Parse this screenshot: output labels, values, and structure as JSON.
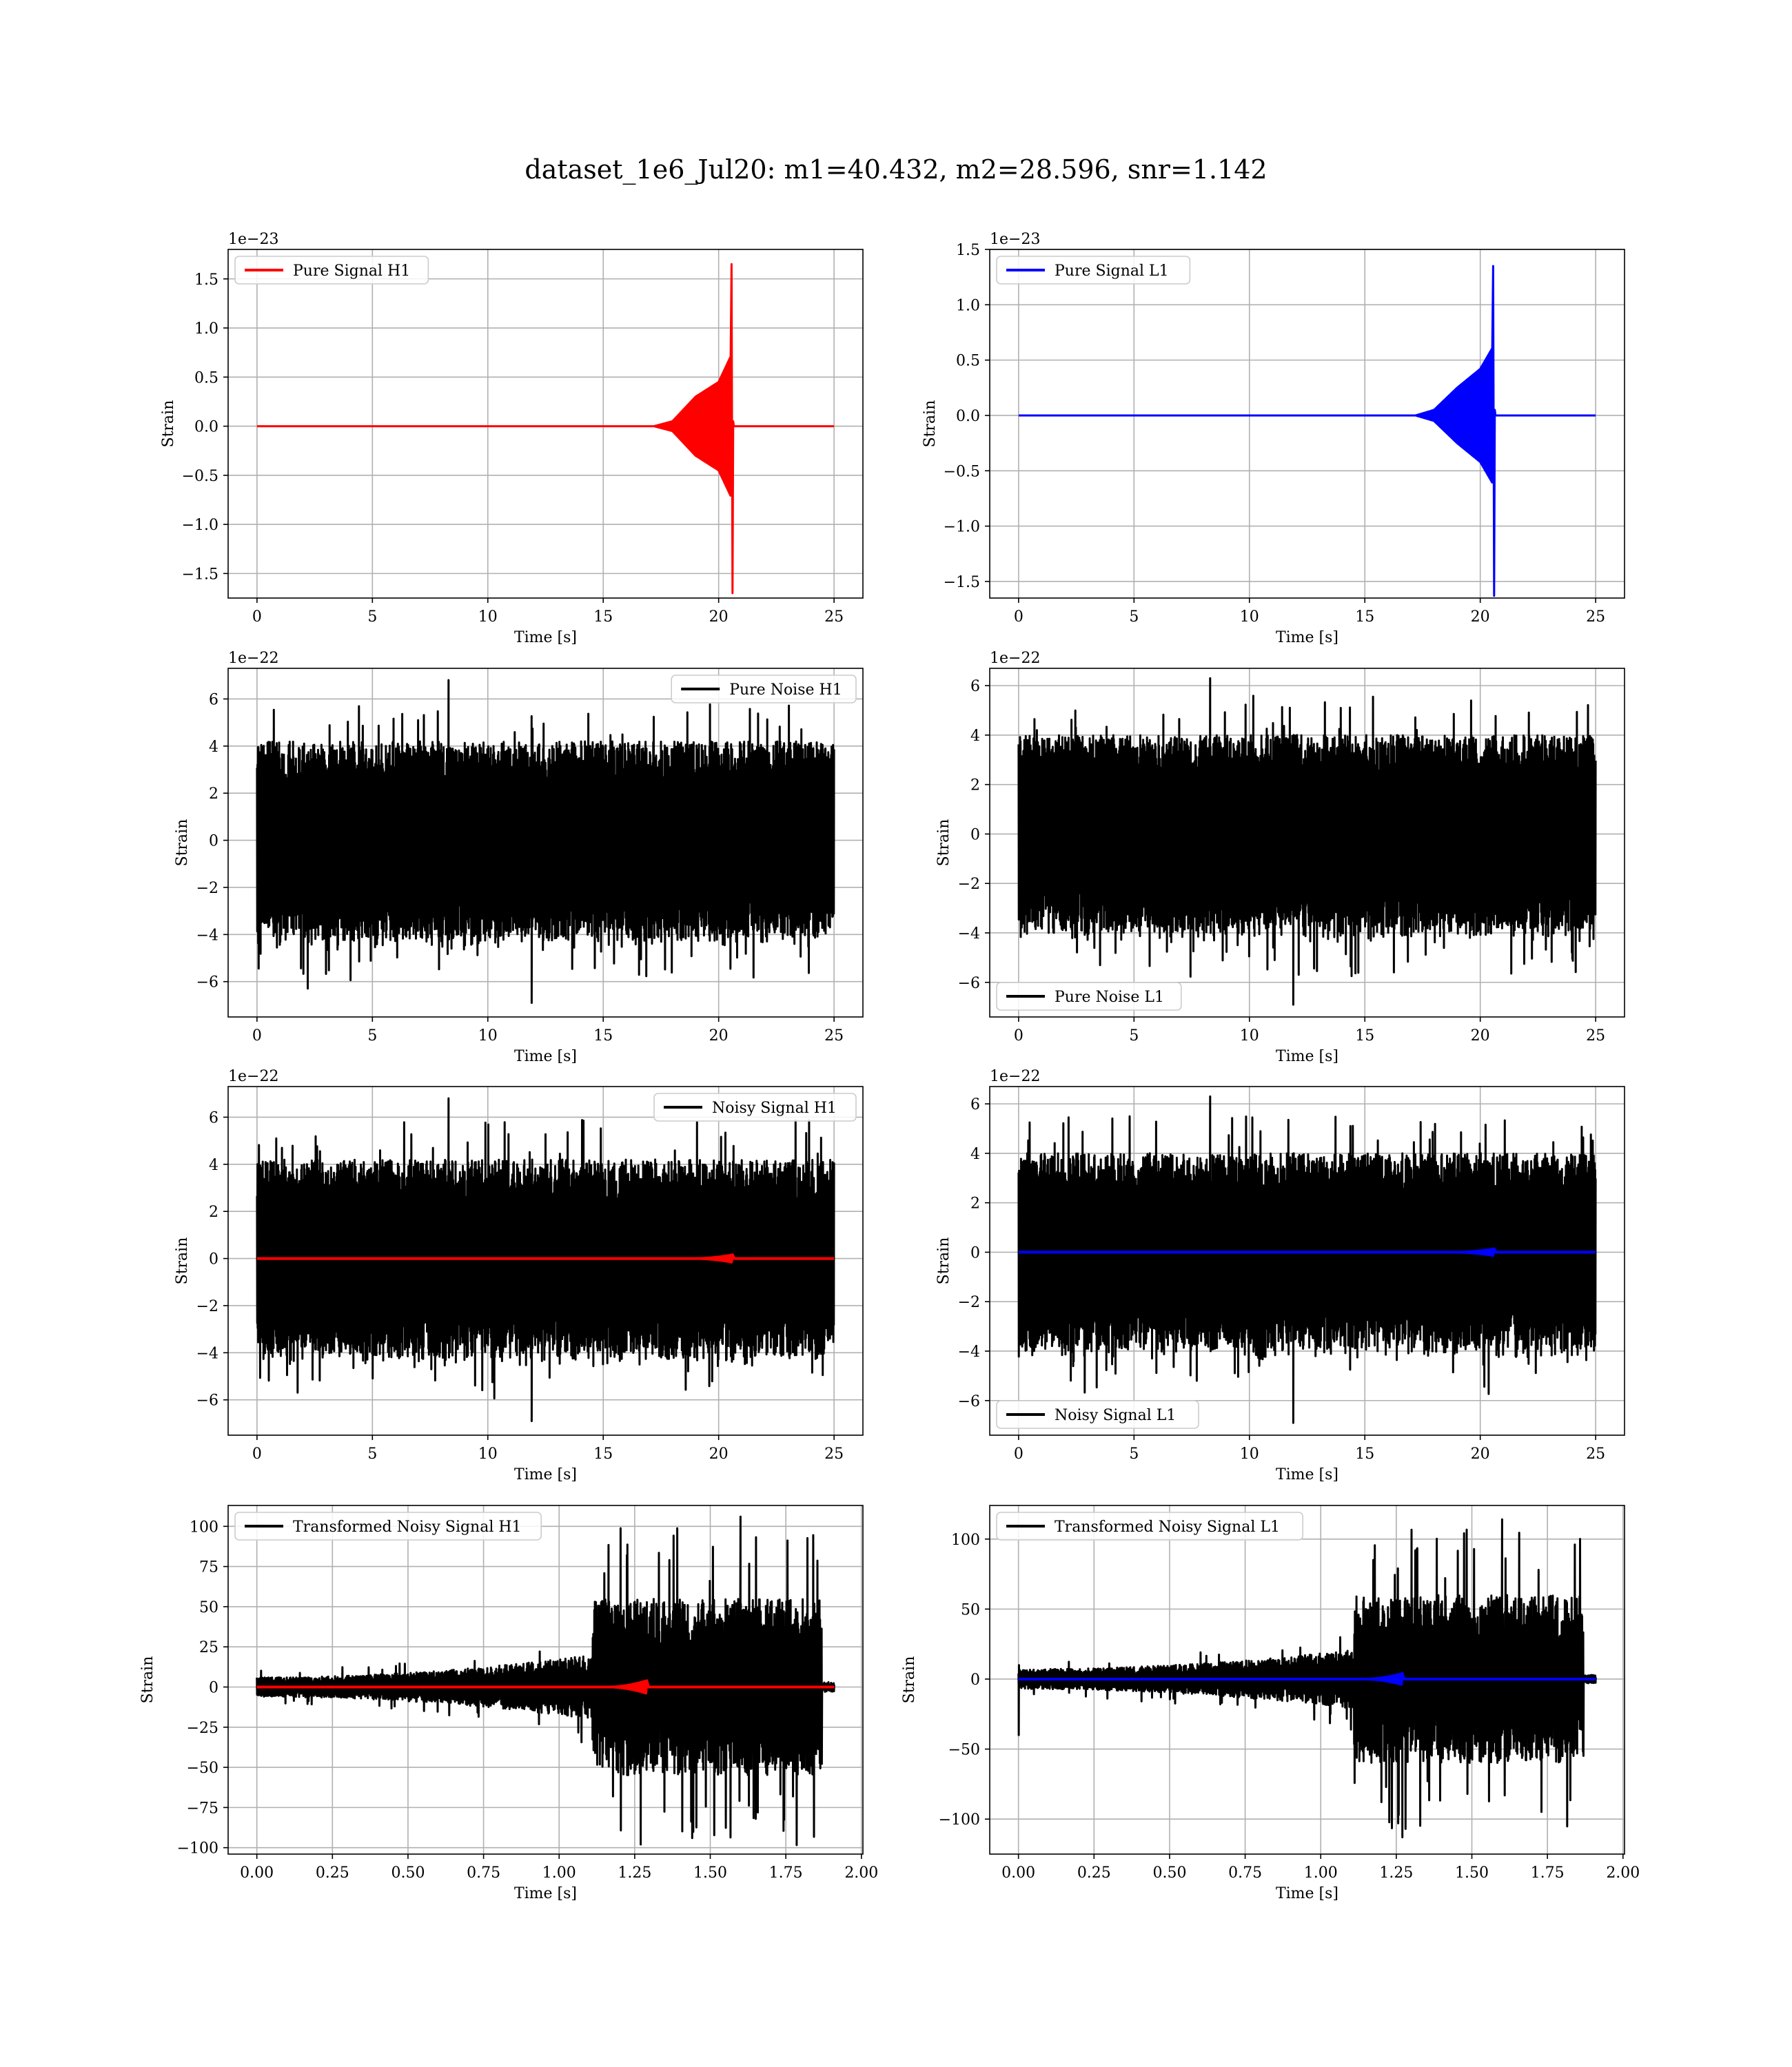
{
  "figure": {
    "title": "dataset_1e6_Jul20: m1=40.432, m2=28.596, snr=1.142"
  },
  "colors": {
    "h1_signal": "#ff0000",
    "l1_signal": "#0000ff",
    "noise": "#000000",
    "grid": "#b0b0b0"
  },
  "chart_data": [
    {
      "id": "pure-signal-h1",
      "type": "line",
      "xlabel": "Time [s]",
      "ylabel": "Strain",
      "exponent_label": "1e−23",
      "xlim": [
        -1.25,
        26.25
      ],
      "ylim": [
        -1.75,
        1.8
      ],
      "xticks": [
        0,
        5,
        10,
        15,
        20,
        25
      ],
      "xtick_labels": [
        "0",
        "5",
        "10",
        "15",
        "20",
        "25"
      ],
      "yticks": [
        -1.5,
        -1.0,
        -0.5,
        0.0,
        0.5,
        1.0,
        1.5
      ],
      "ytick_labels": [
        "−1.5",
        "−1.0",
        "−0.5",
        "0.0",
        "0.5",
        "1.0",
        "1.5"
      ],
      "grid": true,
      "legend_loc": "upper left",
      "series": [
        {
          "name": "Pure Signal H1",
          "color": "#ff0000",
          "kind": "chirp",
          "t_range": [
            0,
            25
          ],
          "merger_time": 20.6,
          "peak_amplitude": 1.65,
          "peak_min": -1.7,
          "amp_at_18": 0.05,
          "amp_at_19": 0.3,
          "amp_at_20": 0.45,
          "amp_at_20_5": 0.7
        }
      ]
    },
    {
      "id": "pure-signal-l1",
      "type": "line",
      "xlabel": "Time [s]",
      "ylabel": "Strain",
      "exponent_label": "1e−23",
      "xlim": [
        -1.25,
        26.25
      ],
      "ylim": [
        -1.65,
        1.5
      ],
      "xticks": [
        0,
        5,
        10,
        15,
        20,
        25
      ],
      "xtick_labels": [
        "0",
        "5",
        "10",
        "15",
        "20",
        "25"
      ],
      "yticks": [
        -1.5,
        -1.0,
        -0.5,
        0.0,
        0.5,
        1.0,
        1.5
      ],
      "ytick_labels": [
        "−1.5",
        "−1.0",
        "−0.5",
        "0.0",
        "0.5",
        "1.0",
        "1.5"
      ],
      "grid": true,
      "legend_loc": "upper left",
      "series": [
        {
          "name": "Pure Signal L1",
          "color": "#0000ff",
          "kind": "chirp",
          "t_range": [
            0,
            25
          ],
          "merger_time": 20.6,
          "peak_amplitude": 1.35,
          "peak_min": -1.63,
          "amp_at_18": 0.05,
          "amp_at_19": 0.25,
          "amp_at_20": 0.42,
          "amp_at_20_5": 0.6
        }
      ]
    },
    {
      "id": "pure-noise-h1",
      "type": "line",
      "xlabel": "Time [s]",
      "ylabel": "Strain",
      "exponent_label": "1e−22",
      "xlim": [
        -1.25,
        26.25
      ],
      "ylim": [
        -7.5,
        7.3
      ],
      "xticks": [
        0,
        5,
        10,
        15,
        20,
        25
      ],
      "xtick_labels": [
        "0",
        "5",
        "10",
        "15",
        "20",
        "25"
      ],
      "yticks": [
        -6,
        -4,
        -2,
        0,
        2,
        4,
        6
      ],
      "ytick_labels": [
        "−6",
        "−4",
        "−2",
        "0",
        "2",
        "4",
        "6"
      ],
      "grid": true,
      "legend_loc": "upper right",
      "series": [
        {
          "name": "Pure Noise H1",
          "color": "#000000",
          "kind": "noise",
          "t_range": [
            0,
            25
          ],
          "band": [
            -4.2,
            4.2
          ],
          "spike_max": 6.8,
          "spike_min": -6.9
        }
      ]
    },
    {
      "id": "pure-noise-l1",
      "type": "line",
      "xlabel": "Time [s]",
      "ylabel": "Strain",
      "exponent_label": "1e−22",
      "xlim": [
        -1.25,
        26.25
      ],
      "ylim": [
        -7.4,
        6.7
      ],
      "xticks": [
        0,
        5,
        10,
        15,
        20,
        25
      ],
      "xtick_labels": [
        "0",
        "5",
        "10",
        "15",
        "20",
        "25"
      ],
      "yticks": [
        -6,
        -4,
        -2,
        0,
        2,
        4,
        6
      ],
      "ytick_labels": [
        "−6",
        "−4",
        "−2",
        "0",
        "2",
        "4",
        "6"
      ],
      "grid": true,
      "legend_loc": "lower left",
      "series": [
        {
          "name": "Pure Noise L1",
          "color": "#000000",
          "kind": "noise",
          "t_range": [
            0,
            25
          ],
          "band": [
            -4.0,
            4.0
          ],
          "spike_max": 6.3,
          "spike_min": -6.9
        }
      ]
    },
    {
      "id": "noisy-signal-h1",
      "type": "line",
      "xlabel": "Time [s]",
      "ylabel": "Strain",
      "exponent_label": "1e−22",
      "xlim": [
        -1.25,
        26.25
      ],
      "ylim": [
        -7.5,
        7.3
      ],
      "xticks": [
        0,
        5,
        10,
        15,
        20,
        25
      ],
      "xtick_labels": [
        "0",
        "5",
        "10",
        "15",
        "20",
        "25"
      ],
      "yticks": [
        -6,
        -4,
        -2,
        0,
        2,
        4,
        6
      ],
      "ytick_labels": [
        "−6",
        "−4",
        "−2",
        "0",
        "2",
        "4",
        "6"
      ],
      "grid": true,
      "legend_loc": "upper right",
      "series": [
        {
          "name": "Noisy Signal H1",
          "color": "#000000",
          "kind": "noise",
          "t_range": [
            0,
            25
          ],
          "band": [
            -4.2,
            4.2
          ],
          "spike_max": 6.8,
          "spike_min": -6.9
        },
        {
          "name": "",
          "color": "#ff0000",
          "kind": "flat_chirp",
          "t_range": [
            0,
            25
          ],
          "merger_time": 20.6,
          "peak_amplitude": 0.16
        }
      ]
    },
    {
      "id": "noisy-signal-l1",
      "type": "line",
      "xlabel": "Time [s]",
      "ylabel": "Strain",
      "exponent_label": "1e−22",
      "xlim": [
        -1.25,
        26.25
      ],
      "ylim": [
        -7.4,
        6.7
      ],
      "xticks": [
        0,
        5,
        10,
        15,
        20,
        25
      ],
      "xtick_labels": [
        "0",
        "5",
        "10",
        "15",
        "20",
        "25"
      ],
      "yticks": [
        -6,
        -4,
        -2,
        0,
        2,
        4,
        6
      ],
      "ytick_labels": [
        "−6",
        "−4",
        "−2",
        "0",
        "2",
        "4",
        "6"
      ],
      "grid": true,
      "legend_loc": "lower left",
      "series": [
        {
          "name": "Noisy Signal L1",
          "color": "#000000",
          "kind": "noise",
          "t_range": [
            0,
            25
          ],
          "band": [
            -4.0,
            4.0
          ],
          "spike_max": 6.3,
          "spike_min": -6.9
        },
        {
          "name": "",
          "color": "#0000ff",
          "kind": "flat_chirp",
          "t_range": [
            0,
            25
          ],
          "merger_time": 20.6,
          "peak_amplitude": 0.14
        }
      ]
    },
    {
      "id": "transformed-h1",
      "type": "line",
      "xlabel": "Time [s]",
      "ylabel": "Strain",
      "exponent_label": "",
      "xlim": [
        -0.095,
        2.005
      ],
      "ylim": [
        -104,
        113
      ],
      "xticks": [
        0,
        0.25,
        0.5,
        0.75,
        1.0,
        1.25,
        1.5,
        1.75,
        2.0
      ],
      "xtick_labels": [
        "0.00",
        "0.25",
        "0.50",
        "0.75",
        "1.00",
        "1.25",
        "1.50",
        "1.75",
        "2.00"
      ],
      "yticks": [
        -100,
        -75,
        -50,
        -25,
        0,
        25,
        50,
        75,
        100
      ],
      "ytick_labels": [
        "−100",
        "−75",
        "−50",
        "−25",
        "0",
        "25",
        "50",
        "75",
        "100"
      ],
      "grid": true,
      "legend_loc": "upper left",
      "series": [
        {
          "name": "Transformed Noisy Signal H1",
          "color": "#000000",
          "kind": "whitened",
          "t_range": [
            0,
            1.91
          ],
          "low_band": 6,
          "low_band_growth": 14,
          "burst_start": 1.11,
          "burst_end": 1.87,
          "burst_band": 55,
          "spike_max": 106,
          "spike_min": -98
        },
        {
          "name": "",
          "color": "#ff0000",
          "kind": "flat_chirp",
          "t_range": [
            0,
            1.91
          ],
          "merger_time": 1.29,
          "peak_amplitude": 4
        }
      ]
    },
    {
      "id": "transformed-l1",
      "type": "line",
      "xlabel": "Time [s]",
      "ylabel": "Strain",
      "exponent_label": "",
      "xlim": [
        -0.095,
        2.005
      ],
      "ylim": [
        -125,
        124
      ],
      "xticks": [
        0,
        0.25,
        0.5,
        0.75,
        1.0,
        1.25,
        1.5,
        1.75,
        2.0
      ],
      "xtick_labels": [
        "0.00",
        "0.25",
        "0.50",
        "0.75",
        "1.00",
        "1.25",
        "1.50",
        "1.75",
        "2.00"
      ],
      "yticks": [
        -100,
        -50,
        0,
        50,
        100
      ],
      "ytick_labels": [
        "−100",
        "−50",
        "0",
        "50",
        "100"
      ],
      "grid": true,
      "legend_loc": "upper left",
      "series": [
        {
          "name": "Transformed Noisy Signal L1",
          "color": "#000000",
          "kind": "whitened",
          "t_range": [
            0,
            1.91
          ],
          "low_band": 7,
          "low_band_growth": 14,
          "burst_start": 1.11,
          "burst_end": 1.87,
          "burst_band": 60,
          "spike_max": 114,
          "spike_min": -113,
          "start_dip": -40
        },
        {
          "name": "",
          "color": "#0000ff",
          "kind": "flat_chirp",
          "t_range": [
            0,
            1.91
          ],
          "merger_time": 1.27,
          "peak_amplitude": 4
        }
      ]
    }
  ]
}
